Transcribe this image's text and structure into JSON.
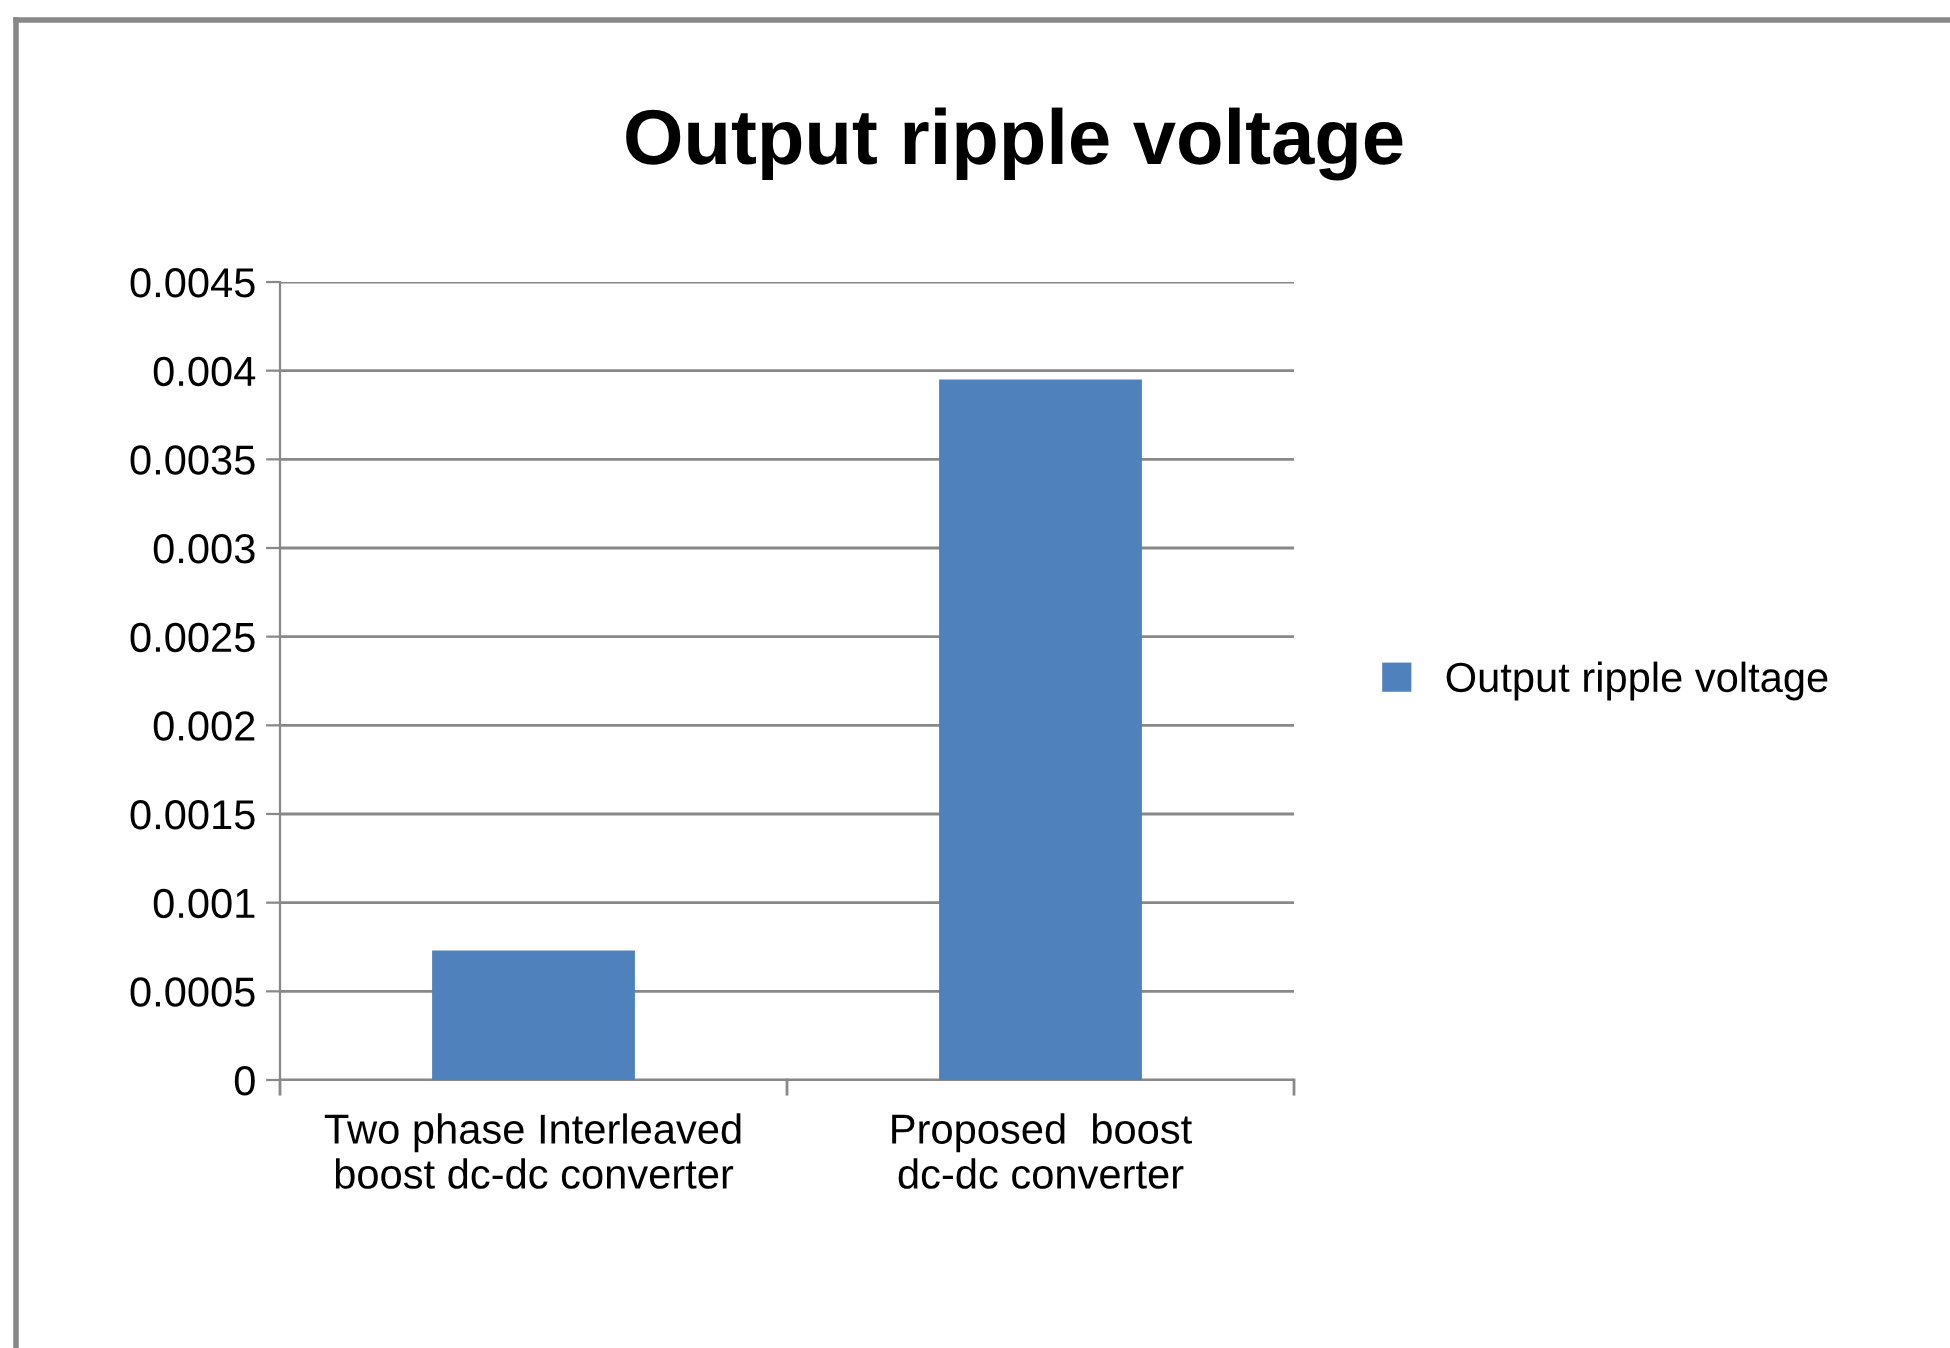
{
  "chart_data": {
    "type": "bar",
    "title": "Output ripple voltage",
    "categories": [
      "Two phase Interleaved\nboost dc-dc converter",
      "Proposed  boost\ndc-dc converter"
    ],
    "series": [
      {
        "name": "Output ripple voltage",
        "color": "#4f81bd",
        "values": [
          0.00073,
          0.00395
        ]
      }
    ],
    "ylim": [
      0,
      0.0045
    ],
    "yticks": [
      0,
      0.0005,
      0.001,
      0.0015,
      0.002,
      0.0025,
      0.003,
      0.0035,
      0.004,
      0.0045
    ],
    "grid": "y",
    "legend": "right"
  }
}
